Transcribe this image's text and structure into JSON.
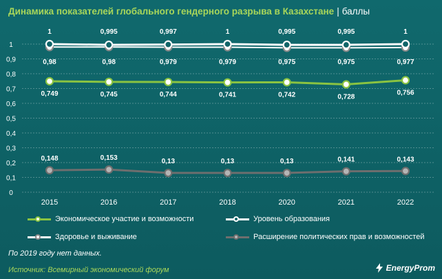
{
  "title": "Динамика показателей глобального гендерного разрыва в Казахстане",
  "title_sep": "|",
  "unit": "баллы",
  "note": "По 2019 году нет данных.",
  "source": "Источник: Всемирный экономический форум",
  "brand": "EnergyProm",
  "colors": {
    "background": "#0f6468",
    "accent": "#a8d65a",
    "econ": "#8ac341",
    "edu": "#ffffff",
    "health": "#8a8a8a",
    "politics": "#6e6e6e"
  },
  "chart_data": {
    "type": "line",
    "categories": [
      "2015",
      "2016",
      "2017",
      "2018",
      "2020",
      "2021",
      "2022"
    ],
    "y_ticks": [
      "0",
      "0,1",
      "0,2",
      "0,3",
      "0,4",
      "0,5",
      "0,6",
      "0,7",
      "0,8",
      "0,9",
      "1"
    ],
    "ylim": [
      0,
      1
    ],
    "grid": true,
    "legend_position": "bottom",
    "series": [
      {
        "key": "econ",
        "name": "Экономическое участие и возможности",
        "values": [
          0.749,
          0.745,
          0.744,
          0.741,
          0.742,
          0.728,
          0.756
        ],
        "labels": [
          "0,749",
          "0,745",
          "0,744",
          "0,741",
          "0,742",
          "0,728",
          "0,756"
        ],
        "label_pos": "below"
      },
      {
        "key": "edu",
        "name": "Уровень образования",
        "values": [
          1,
          0.995,
          0.997,
          1,
          0.995,
          0.995,
          1
        ],
        "labels": [
          "1",
          "0,995",
          "0,997",
          "1",
          "0,995",
          "0,995",
          "1"
        ],
        "label_pos": "above"
      },
      {
        "key": "health",
        "name": "Здоровье и выживание",
        "values": [
          0.98,
          0.98,
          0.979,
          0.979,
          0.975,
          0.975,
          0.977
        ],
        "labels": [
          "0,98",
          "0,98",
          "0,979",
          "0,979",
          "0,975",
          "0,975",
          "0,977"
        ],
        "label_pos": "below"
      },
      {
        "key": "politics",
        "name": "Расширение политических прав и возможностей",
        "values": [
          0.148,
          0.153,
          0.13,
          0.13,
          0.13,
          0.141,
          0.143
        ],
        "labels": [
          "0,148",
          "0,153",
          "0,13",
          "0,13",
          "0,13",
          "0,141",
          "0,143"
        ],
        "label_pos": "above"
      }
    ]
  }
}
